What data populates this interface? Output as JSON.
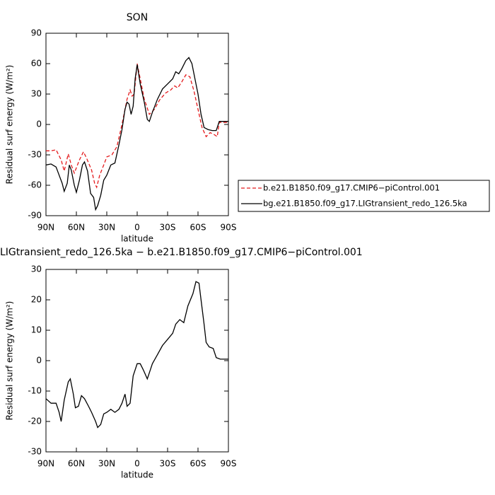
{
  "chart_data": [
    {
      "type": "line",
      "title": "SON",
      "xlabel": "latitude",
      "ylabel": "Residual surf energy (W/m²)",
      "xlim": [
        90,
        -90
      ],
      "ylim": [
        -90,
        90
      ],
      "xticks": [
        {
          "value": 90,
          "label": "90N"
        },
        {
          "value": 60,
          "label": "60N"
        },
        {
          "value": 30,
          "label": "30N"
        },
        0,
        {
          "value": -30,
          "label": "30S"
        },
        {
          "value": -60,
          "label": "60S"
        },
        {
          "value": -90,
          "label": "90S"
        }
      ],
      "yticks": [
        -90,
        -60,
        -30,
        0,
        30,
        60,
        90
      ],
      "legend": "right",
      "series": [
        {
          "name": "b.e21.B1850.f09_g17.CMIP6−piControl.001",
          "color": "#e41a1c",
          "dashed": true,
          "x": [
            90,
            85,
            80,
            75,
            72,
            68,
            65,
            62,
            57,
            53,
            50,
            45,
            42,
            40,
            37,
            33,
            30,
            25,
            20,
            15,
            10,
            7,
            5,
            3,
            0,
            -3,
            -7,
            -12,
            -17,
            -22,
            -28,
            -33,
            -37,
            -40,
            -44,
            -48,
            -52,
            -56,
            -60,
            -64,
            -68,
            -72,
            -76,
            -79,
            -81,
            -85,
            -90
          ],
          "values": [
            -26,
            -26,
            -25,
            -35,
            -46,
            -29,
            -40,
            -48,
            -35,
            -27,
            -33,
            -45,
            -58,
            -62,
            -50,
            -40,
            -32,
            -30,
            -22,
            0,
            25,
            34,
            28,
            30,
            60,
            45,
            25,
            10,
            15,
            24,
            31,
            34,
            38,
            36,
            42,
            49,
            47,
            33,
            15,
            -3,
            -12,
            -8,
            -10,
            -12,
            2,
            2,
            2
          ]
        },
        {
          "name": "bg.e21.B1850.f09_g17.LIGtransient_redo_126.5ka",
          "color": "#000000",
          "dashed": false,
          "x": [
            90,
            85,
            80,
            77,
            74,
            72,
            69,
            67,
            65,
            62,
            60,
            57,
            54,
            52,
            49,
            46,
            43,
            41,
            39,
            36,
            33,
            30,
            26,
            22,
            18,
            15,
            12,
            10,
            8,
            6,
            4,
            2,
            0,
            -3,
            -7,
            -10,
            -12,
            -15,
            -20,
            -25,
            -30,
            -35,
            -38,
            -41,
            -44,
            -48,
            -51,
            -54,
            -57,
            -60,
            -63,
            -66,
            -70,
            -74,
            -78,
            -81,
            -85,
            -90
          ],
          "values": [
            -40,
            -39,
            -42,
            -50,
            -58,
            -66,
            -58,
            -40,
            -45,
            -60,
            -67,
            -55,
            -40,
            -37,
            -46,
            -68,
            -72,
            -84,
            -80,
            -70,
            -55,
            -50,
            -40,
            -38,
            -20,
            -5,
            15,
            22,
            20,
            10,
            18,
            45,
            59,
            40,
            22,
            5,
            3,
            12,
            25,
            35,
            40,
            45,
            52,
            50,
            55,
            63,
            66,
            60,
            45,
            30,
            10,
            -3,
            -5,
            -6,
            -6,
            3,
            3,
            3
          ]
        }
      ]
    },
    {
      "type": "line",
      "title": "LIGtransient_redo_126.5ka − b.e21.B1850.f09_g17.CMIP6−piControl.001",
      "xlabel": "latitude",
      "ylabel": "Residual surf energy (W/m²)",
      "xlim": [
        90,
        -90
      ],
      "ylim": [
        -30,
        30
      ],
      "xticks": [
        {
          "value": 90,
          "label": "90N"
        },
        {
          "value": 60,
          "label": "60N"
        },
        {
          "value": 30,
          "label": "30N"
        },
        0,
        {
          "value": -30,
          "label": "30S"
        },
        {
          "value": -60,
          "label": "60S"
        },
        {
          "value": -90,
          "label": "90S"
        }
      ],
      "yticks": [
        -30,
        -20,
        -10,
        0,
        10,
        20,
        30
      ],
      "series": [
        {
          "color": "#000000",
          "dashed": false,
          "x": [
            90,
            85,
            80,
            77,
            75,
            72,
            68,
            66,
            63,
            61,
            58,
            55,
            52,
            48,
            45,
            41,
            39,
            36,
            33,
            30,
            26,
            22,
            18,
            15,
            12,
            10,
            7,
            4,
            0,
            -3,
            -6,
            -10,
            -12,
            -15,
            -20,
            -25,
            -30,
            -35,
            -38,
            -42,
            -46,
            -50,
            -55,
            -58,
            -61,
            -63,
            -66,
            -68,
            -71,
            -75,
            -78,
            -82,
            -90
          ],
          "values": [
            -12.5,
            -14,
            -14,
            -17,
            -20,
            -13,
            -7,
            -6,
            -11,
            -15.5,
            -15,
            -11.5,
            -12.5,
            -15,
            -17,
            -20,
            -22,
            -21,
            -17.5,
            -17,
            -16,
            -17,
            -16,
            -14,
            -11,
            -15,
            -14,
            -5,
            -1,
            -1,
            -3,
            -6,
            -4,
            -1,
            2,
            5,
            7,
            9,
            12,
            13.5,
            12.5,
            18,
            22,
            26,
            25.5,
            20,
            12,
            6,
            4.5,
            4,
            1,
            0.5,
            0.5
          ]
        }
      ]
    }
  ]
}
